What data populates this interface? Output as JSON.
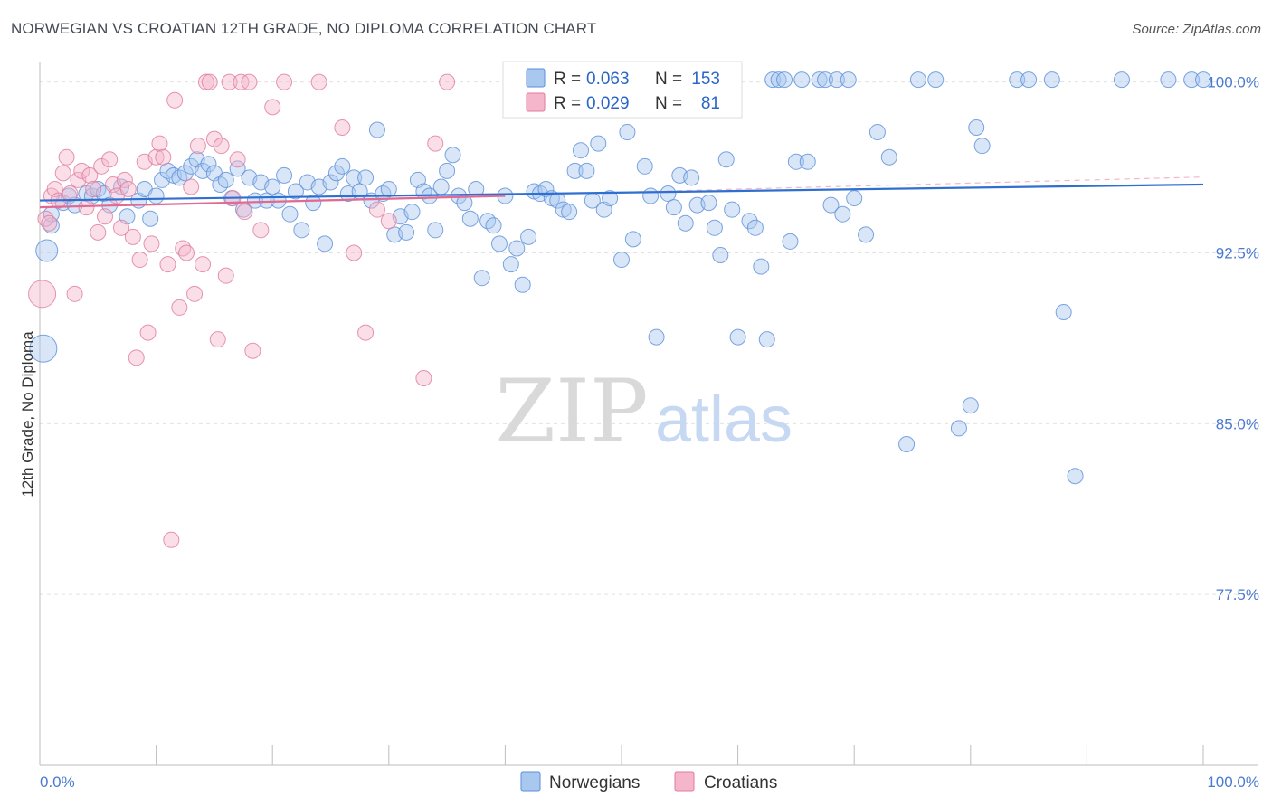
{
  "title": "NORWEGIAN VS CROATIAN 12TH GRADE, NO DIPLOMA CORRELATION CHART",
  "source": "Source: ZipAtlas.com",
  "watermark": {
    "zip": "ZIP",
    "atlas": "atlas"
  },
  "legend_box": {
    "rows": [
      {
        "r_label": "R =",
        "r_value": "0.063",
        "n_label": "N =",
        "n_value": "153",
        "color": "#a9c8f0",
        "stroke": "#5b8fd8"
      },
      {
        "r_label": "R =",
        "r_value": "0.029",
        "n_label": "N =",
        "n_value": "81",
        "color": "#f5b6cb",
        "stroke": "#e07a9c"
      }
    ]
  },
  "chart_data": {
    "type": "scatter",
    "xlabel": "",
    "ylabel": "12th Grade, No Diploma",
    "xlim": [
      0,
      100
    ],
    "ylim": [
      70.0,
      100.9
    ],
    "x_tick_labels": [
      "0.0%",
      "100.0%"
    ],
    "y_ticks": [
      100.0,
      92.5,
      85.0,
      77.5
    ],
    "y_tick_labels": [
      "100.0%",
      "92.5%",
      "85.0%",
      "77.5%"
    ],
    "grid": true,
    "legend": "bottom-center",
    "series": [
      {
        "name": "Norwegians",
        "color": "#a9c8f0",
        "stroke": "#5b8fd8",
        "trend": {
          "x": [
            0,
            100
          ],
          "y": [
            94.8,
            95.5
          ]
        },
        "points": [
          [
            0.3,
            88.3,
            3
          ],
          [
            0.6,
            92.6,
            2
          ],
          [
            1.0,
            93.7,
            1
          ],
          [
            1.0,
            94.2,
            1
          ],
          [
            2.0,
            94.7,
            1
          ],
          [
            2.5,
            95.0,
            1
          ],
          [
            3.0,
            94.6,
            1
          ],
          [
            4.0,
            95.1,
            1
          ],
          [
            4.5,
            95.0,
            1
          ],
          [
            5.0,
            95.3,
            1
          ],
          [
            5.5,
            95.1,
            1
          ],
          [
            6.0,
            94.6,
            1
          ],
          [
            7.0,
            95.4,
            1
          ],
          [
            7.5,
            94.1,
            1
          ],
          [
            8.5,
            94.8,
            1
          ],
          [
            9.0,
            95.3,
            1
          ],
          [
            9.5,
            94.0,
            1
          ],
          [
            10.0,
            95.0,
            1
          ],
          [
            10.5,
            95.7,
            1
          ],
          [
            11.0,
            96.1,
            1
          ],
          [
            11.5,
            95.9,
            1
          ],
          [
            12.0,
            95.8,
            1
          ],
          [
            12.5,
            96.0,
            1
          ],
          [
            13.0,
            96.3,
            1
          ],
          [
            13.5,
            96.6,
            1
          ],
          [
            14.0,
            96.1,
            1
          ],
          [
            14.5,
            96.4,
            1
          ],
          [
            15.0,
            96.0,
            1
          ],
          [
            15.5,
            95.5,
            1
          ],
          [
            16.0,
            95.7,
            1
          ],
          [
            16.5,
            94.9,
            1
          ],
          [
            17.0,
            96.2,
            1
          ],
          [
            17.5,
            94.4,
            1
          ],
          [
            18.0,
            95.8,
            1
          ],
          [
            18.5,
            94.8,
            1
          ],
          [
            19.0,
            95.6,
            1
          ],
          [
            19.5,
            94.8,
            1
          ],
          [
            20.0,
            95.4,
            1
          ],
          [
            20.5,
            94.8,
            1
          ],
          [
            21.0,
            95.9,
            1
          ],
          [
            21.5,
            94.2,
            1
          ],
          [
            22.0,
            95.2,
            1
          ],
          [
            22.5,
            93.5,
            1
          ],
          [
            23.0,
            95.6,
            1
          ],
          [
            23.5,
            94.7,
            1
          ],
          [
            24.0,
            95.4,
            1
          ],
          [
            24.5,
            92.9,
            1
          ],
          [
            25.0,
            95.6,
            1
          ],
          [
            25.5,
            96.0,
            1
          ],
          [
            26.0,
            96.3,
            1
          ],
          [
            26.5,
            95.1,
            1
          ],
          [
            27.0,
            95.8,
            1
          ],
          [
            27.5,
            95.2,
            1
          ],
          [
            28.0,
            95.8,
            1
          ],
          [
            28.5,
            94.8,
            1
          ],
          [
            29.0,
            97.9,
            1
          ],
          [
            29.5,
            95.1,
            1
          ],
          [
            30.0,
            95.3,
            1
          ],
          [
            30.5,
            93.3,
            1
          ],
          [
            31.0,
            94.1,
            1
          ],
          [
            31.5,
            93.4,
            1
          ],
          [
            32.0,
            94.3,
            1
          ],
          [
            32.5,
            95.7,
            1
          ],
          [
            33.0,
            95.2,
            1
          ],
          [
            33.5,
            95.0,
            1
          ],
          [
            34.0,
            93.5,
            1
          ],
          [
            34.5,
            95.4,
            1
          ],
          [
            35.0,
            96.1,
            1
          ],
          [
            35.5,
            96.8,
            1
          ],
          [
            36.0,
            95.0,
            1
          ],
          [
            36.5,
            94.7,
            1
          ],
          [
            37.0,
            94.0,
            1
          ],
          [
            37.5,
            95.3,
            1
          ],
          [
            38.0,
            91.4,
            1
          ],
          [
            38.5,
            93.9,
            1
          ],
          [
            39.0,
            93.7,
            1
          ],
          [
            39.5,
            92.9,
            1
          ],
          [
            40.0,
            95.0,
            1
          ],
          [
            40.5,
            92.0,
            1
          ],
          [
            41.0,
            92.7,
            1
          ],
          [
            41.5,
            91.1,
            1
          ],
          [
            42.0,
            93.2,
            1
          ],
          [
            42.5,
            95.2,
            1
          ],
          [
            43.0,
            95.1,
            1
          ],
          [
            43.5,
            95.3,
            1
          ],
          [
            44.0,
            94.9,
            1
          ],
          [
            44.5,
            94.8,
            1
          ],
          [
            45.0,
            94.4,
            1
          ],
          [
            45.5,
            94.3,
            1
          ],
          [
            46.0,
            96.1,
            1
          ],
          [
            46.5,
            97.0,
            1
          ],
          [
            47.0,
            96.1,
            1
          ],
          [
            47.5,
            94.8,
            1
          ],
          [
            48.0,
            97.3,
            1
          ],
          [
            48.5,
            94.4,
            1
          ],
          [
            49.0,
            94.9,
            1
          ],
          [
            50.0,
            92.2,
            1
          ],
          [
            50.5,
            97.8,
            1
          ],
          [
            51.0,
            93.1,
            1
          ],
          [
            52.0,
            96.3,
            1
          ],
          [
            52.5,
            95.0,
            1
          ],
          [
            53.0,
            88.8,
            1
          ],
          [
            54.0,
            95.1,
            1
          ],
          [
            54.5,
            94.5,
            1
          ],
          [
            55.0,
            95.9,
            1
          ],
          [
            55.5,
            93.8,
            1
          ],
          [
            56.0,
            95.8,
            1
          ],
          [
            56.5,
            94.6,
            1
          ],
          [
            57.5,
            94.7,
            1
          ],
          [
            58.0,
            93.6,
            1
          ],
          [
            58.5,
            92.4,
            1
          ],
          [
            59.0,
            96.6,
            1
          ],
          [
            59.5,
            94.4,
            1
          ],
          [
            60.0,
            88.8,
            1
          ],
          [
            61.0,
            93.9,
            1
          ],
          [
            61.5,
            93.6,
            1
          ],
          [
            62.0,
            91.9,
            1
          ],
          [
            62.5,
            88.7,
            1
          ],
          [
            63.0,
            100.1,
            1
          ],
          [
            63.5,
            100.1,
            1
          ],
          [
            64.0,
            100.1,
            1
          ],
          [
            64.5,
            93.0,
            1
          ],
          [
            65.0,
            96.5,
            1
          ],
          [
            65.5,
            100.1,
            1
          ],
          [
            66.0,
            96.5,
            1
          ],
          [
            67.0,
            100.1,
            1
          ],
          [
            67.5,
            100.1,
            1
          ],
          [
            68.0,
            94.6,
            1
          ],
          [
            68.5,
            100.1,
            1
          ],
          [
            69.0,
            94.2,
            1
          ],
          [
            69.5,
            100.1,
            1
          ],
          [
            70.0,
            94.9,
            1
          ],
          [
            71.0,
            93.3,
            1
          ],
          [
            72.0,
            97.8,
            1
          ],
          [
            73.0,
            96.7,
            1
          ],
          [
            74.5,
            84.1,
            1
          ],
          [
            75.5,
            100.1,
            1
          ],
          [
            77.0,
            100.1,
            1
          ],
          [
            79.0,
            84.8,
            1
          ],
          [
            80.0,
            85.8,
            1
          ],
          [
            80.5,
            98.0,
            1
          ],
          [
            81.0,
            97.2,
            1
          ],
          [
            84.0,
            100.1,
            1
          ],
          [
            85.0,
            100.1,
            1
          ],
          [
            87.0,
            100.1,
            1
          ],
          [
            88.0,
            89.9,
            1
          ],
          [
            89.0,
            82.7,
            1
          ],
          [
            93.0,
            100.1,
            1
          ],
          [
            97.0,
            100.1,
            1
          ],
          [
            99.0,
            100.1,
            1
          ],
          [
            100.0,
            100.1,
            1
          ]
        ]
      },
      {
        "name": "Croatians",
        "color": "#f5b6cb",
        "stroke": "#e07a9c",
        "trend": {
          "x": [
            0,
            40
          ],
          "y": [
            94.5,
            95.0
          ]
        },
        "points": [
          [
            0.2,
            90.7,
            3
          ],
          [
            0.5,
            94.0,
            1
          ],
          [
            0.8,
            93.8,
            1
          ],
          [
            1.0,
            95.0,
            1
          ],
          [
            1.3,
            95.3,
            1
          ],
          [
            1.6,
            94.8,
            1
          ],
          [
            2.0,
            96.0,
            1
          ],
          [
            2.3,
            96.7,
            1
          ],
          [
            2.6,
            95.1,
            1
          ],
          [
            3.0,
            90.7,
            1
          ],
          [
            3.3,
            95.7,
            1
          ],
          [
            3.6,
            96.1,
            1
          ],
          [
            4.0,
            94.5,
            1
          ],
          [
            4.3,
            95.9,
            1
          ],
          [
            4.6,
            95.3,
            1
          ],
          [
            5.0,
            93.4,
            1
          ],
          [
            5.3,
            96.3,
            1
          ],
          [
            5.6,
            94.1,
            1
          ],
          [
            6.0,
            96.6,
            1
          ],
          [
            6.3,
            95.5,
            1
          ],
          [
            6.6,
            95.0,
            1
          ],
          [
            7.0,
            93.6,
            1
          ],
          [
            7.3,
            95.7,
            1
          ],
          [
            7.6,
            95.3,
            1
          ],
          [
            8.0,
            93.2,
            1
          ],
          [
            8.3,
            87.9,
            1
          ],
          [
            8.6,
            92.2,
            1
          ],
          [
            9.0,
            96.5,
            1
          ],
          [
            9.3,
            89.0,
            1
          ],
          [
            9.6,
            92.9,
            1
          ],
          [
            10.0,
            96.7,
            1
          ],
          [
            10.3,
            97.3,
            1
          ],
          [
            10.6,
            96.7,
            1
          ],
          [
            11.0,
            92.0,
            1
          ],
          [
            11.3,
            79.9,
            1
          ],
          [
            11.6,
            99.2,
            1
          ],
          [
            12.0,
            90.1,
            1
          ],
          [
            12.3,
            92.7,
            1
          ],
          [
            12.6,
            92.5,
            1
          ],
          [
            13.0,
            95.4,
            1
          ],
          [
            13.3,
            90.7,
            1
          ],
          [
            13.6,
            97.2,
            1
          ],
          [
            14.0,
            92.0,
            1
          ],
          [
            14.3,
            100.0,
            1
          ],
          [
            14.6,
            100.0,
            1
          ],
          [
            15.0,
            97.5,
            1
          ],
          [
            15.3,
            88.7,
            1
          ],
          [
            15.6,
            97.2,
            1
          ],
          [
            16.0,
            91.5,
            1
          ],
          [
            16.3,
            100.0,
            1
          ],
          [
            16.6,
            94.9,
            1
          ],
          [
            17.0,
            96.6,
            1
          ],
          [
            17.3,
            100.0,
            1
          ],
          [
            17.6,
            94.3,
            1
          ],
          [
            18.0,
            100.0,
            1
          ],
          [
            18.3,
            88.2,
            1
          ],
          [
            19.0,
            93.5,
            1
          ],
          [
            20.0,
            98.9,
            1
          ],
          [
            21.0,
            100.0,
            1
          ],
          [
            24.0,
            100.0,
            1
          ],
          [
            26.0,
            98.0,
            1
          ],
          [
            27.0,
            92.5,
            1
          ],
          [
            28.0,
            89.0,
            1
          ],
          [
            29.0,
            94.4,
            1
          ],
          [
            30.0,
            93.9,
            1
          ],
          [
            33.0,
            87.0,
            1
          ],
          [
            34.0,
            97.3,
            1
          ],
          [
            35.0,
            100.0,
            1
          ]
        ]
      }
    ]
  },
  "bottom_legend": [
    {
      "label": "Norwegians",
      "color": "#a9c8f0",
      "stroke": "#5b8fd8"
    },
    {
      "label": "Croatians",
      "color": "#f5b6cb",
      "stroke": "#e07a9c"
    }
  ]
}
